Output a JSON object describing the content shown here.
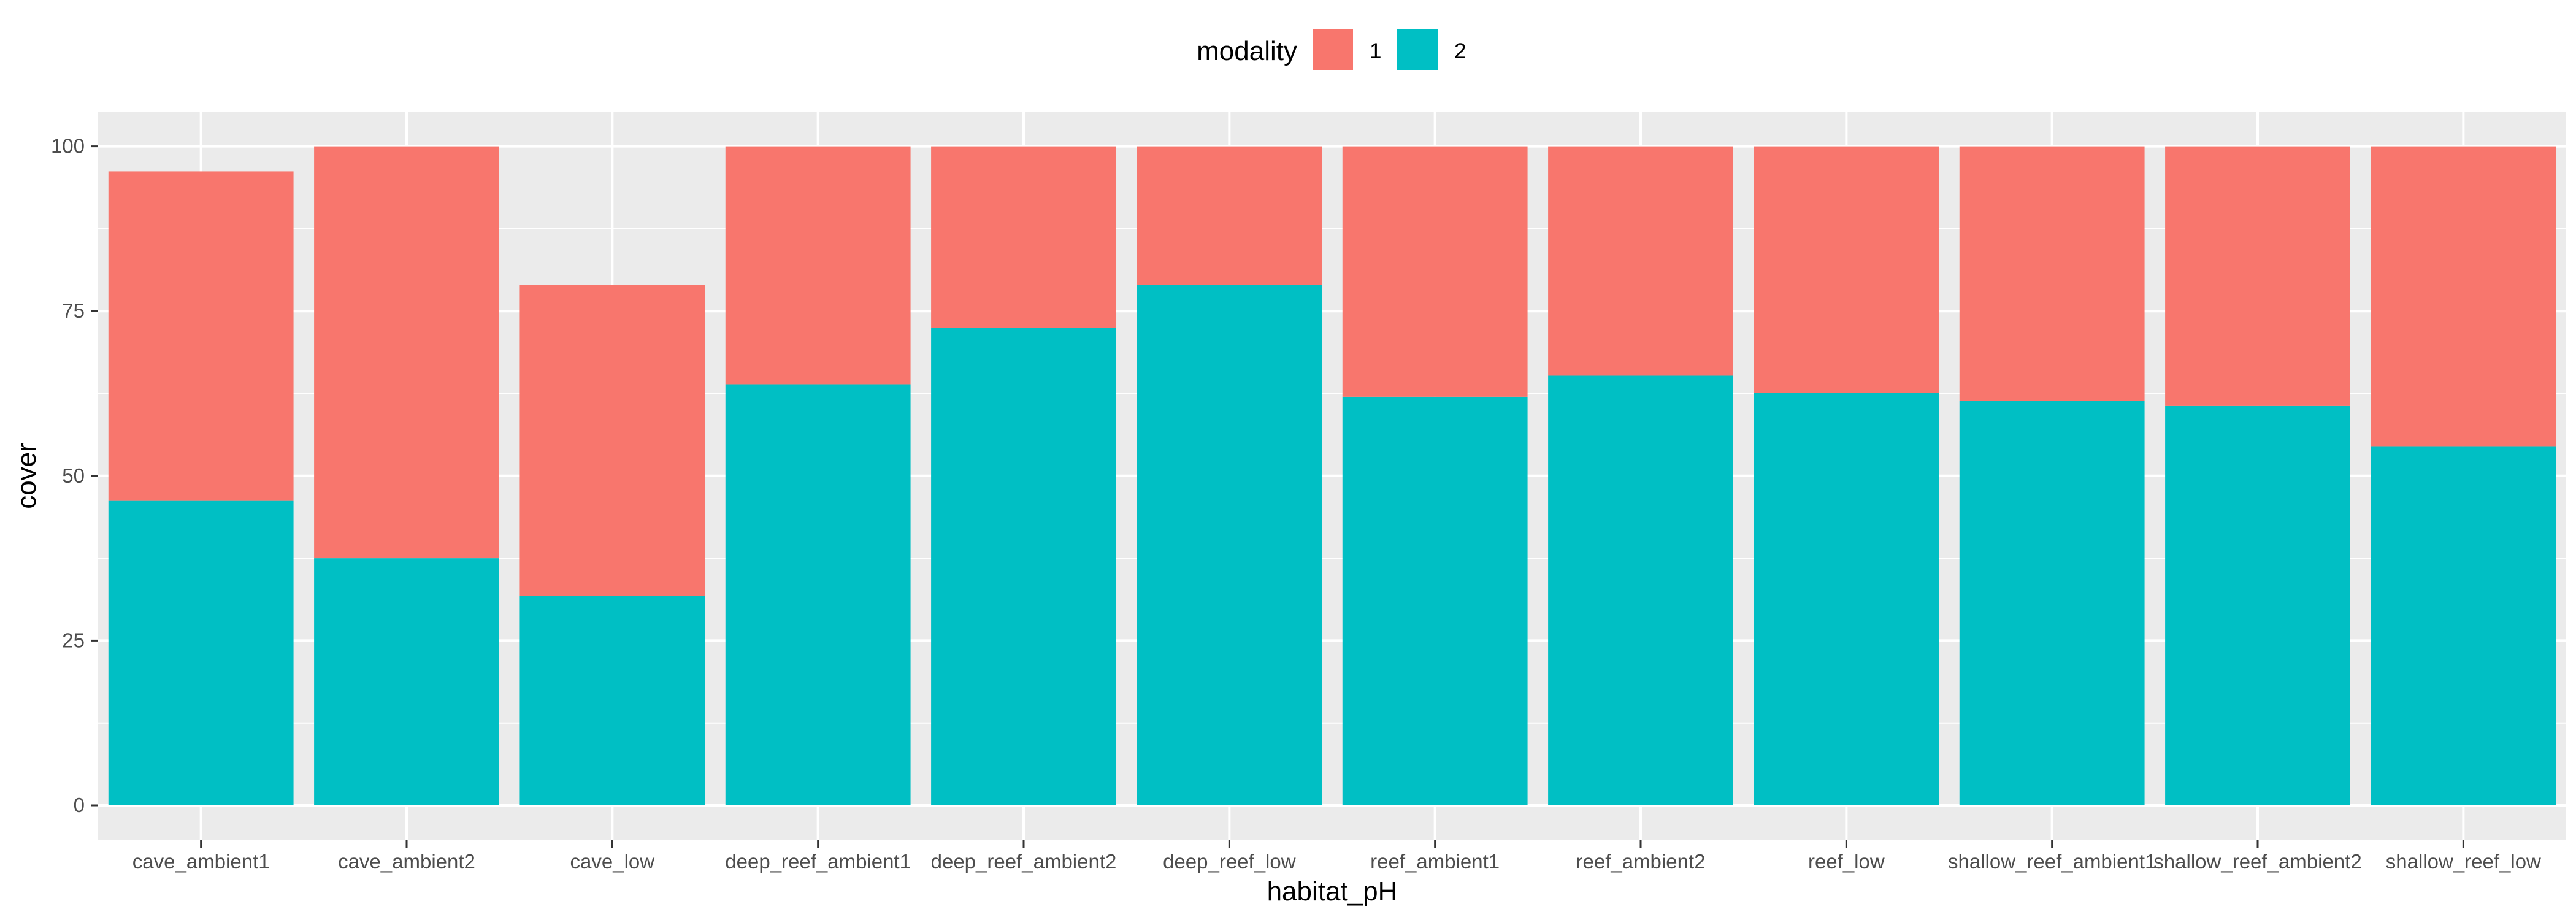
{
  "chart_data": {
    "type": "bar",
    "stacked": true,
    "xlabel": "habitat_pH",
    "ylabel": "cover",
    "ylim": [
      0,
      104
    ],
    "yticks": [
      0,
      25,
      50,
      75,
      100
    ],
    "ytick_labels": [
      "0",
      "25",
      "50",
      "75",
      "100"
    ],
    "grid": true,
    "legend": {
      "title": "modality",
      "placement": "top",
      "entries": [
        {
          "label": "1",
          "color": "#F8766D"
        },
        {
          "label": "2",
          "color": "#00BFC4"
        }
      ]
    },
    "categories": [
      "cave_ambient1",
      "cave_ambient2",
      "cave_low",
      "deep_reef_ambient1",
      "deep_reef_ambient2",
      "deep_reef_low",
      "reef_ambient1",
      "reef_ambient2",
      "reef_low",
      "shallow_reef_ambient1",
      "shallow_reef_ambient2",
      "shallow_reef_low"
    ],
    "series": [
      {
        "name": "1",
        "color": "#F8766D",
        "values": [
          50,
          62.5,
          47.2,
          36.1,
          27.5,
          21,
          38,
          34.8,
          37.4,
          38.6,
          39.4,
          45.5
        ]
      },
      {
        "name": "2",
        "color": "#00BFC4",
        "values": [
          46.2,
          37.5,
          31.8,
          63.9,
          72.5,
          79,
          62,
          65.2,
          62.6,
          61.4,
          60.6,
          54.5
        ]
      }
    ]
  }
}
